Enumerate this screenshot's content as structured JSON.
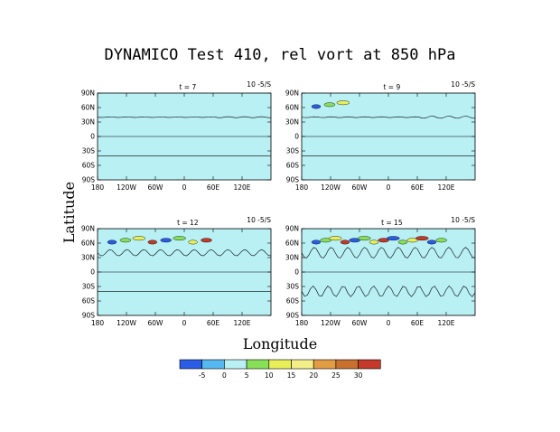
{
  "chart_data": {
    "type": "contour",
    "title": "DYNAMICO Test 410, rel vort at 850 hPa",
    "xlabel": "Longitude",
    "ylabel": "Latitude",
    "xlim": [
      -180,
      180
    ],
    "ylim": [
      -90,
      90
    ],
    "x_tick_labels": [
      "180",
      "120W",
      "60W",
      "0",
      "60E",
      "120E"
    ],
    "y_tick_labels": [
      "90N",
      "60N",
      "30N",
      "0",
      "30S",
      "60S",
      "90S"
    ],
    "units": "10 -5/S",
    "panels": [
      {
        "label": "t = 7",
        "units": "10 -5/S",
        "activity": "low"
      },
      {
        "label": "t = 9",
        "units": "10 -5/S",
        "activity": "low"
      },
      {
        "label": "t = 12",
        "units": "10 -5/S",
        "activity": "medium"
      },
      {
        "label": "t = 15",
        "units": "10 -5/S",
        "activity": "high"
      }
    ],
    "colorbar": {
      "labels": [
        "-5",
        "0",
        "5",
        "10",
        "15",
        "20",
        "25",
        "30"
      ],
      "colors": [
        "#2b5ce6",
        "#55b8f0",
        "#b8f0f4",
        "#88e05a",
        "#e8ef5a",
        "#f4ee8a",
        "#e29c44",
        "#c8702e",
        "#c33a2a"
      ]
    },
    "base_fill": "#b8f0f4"
  }
}
